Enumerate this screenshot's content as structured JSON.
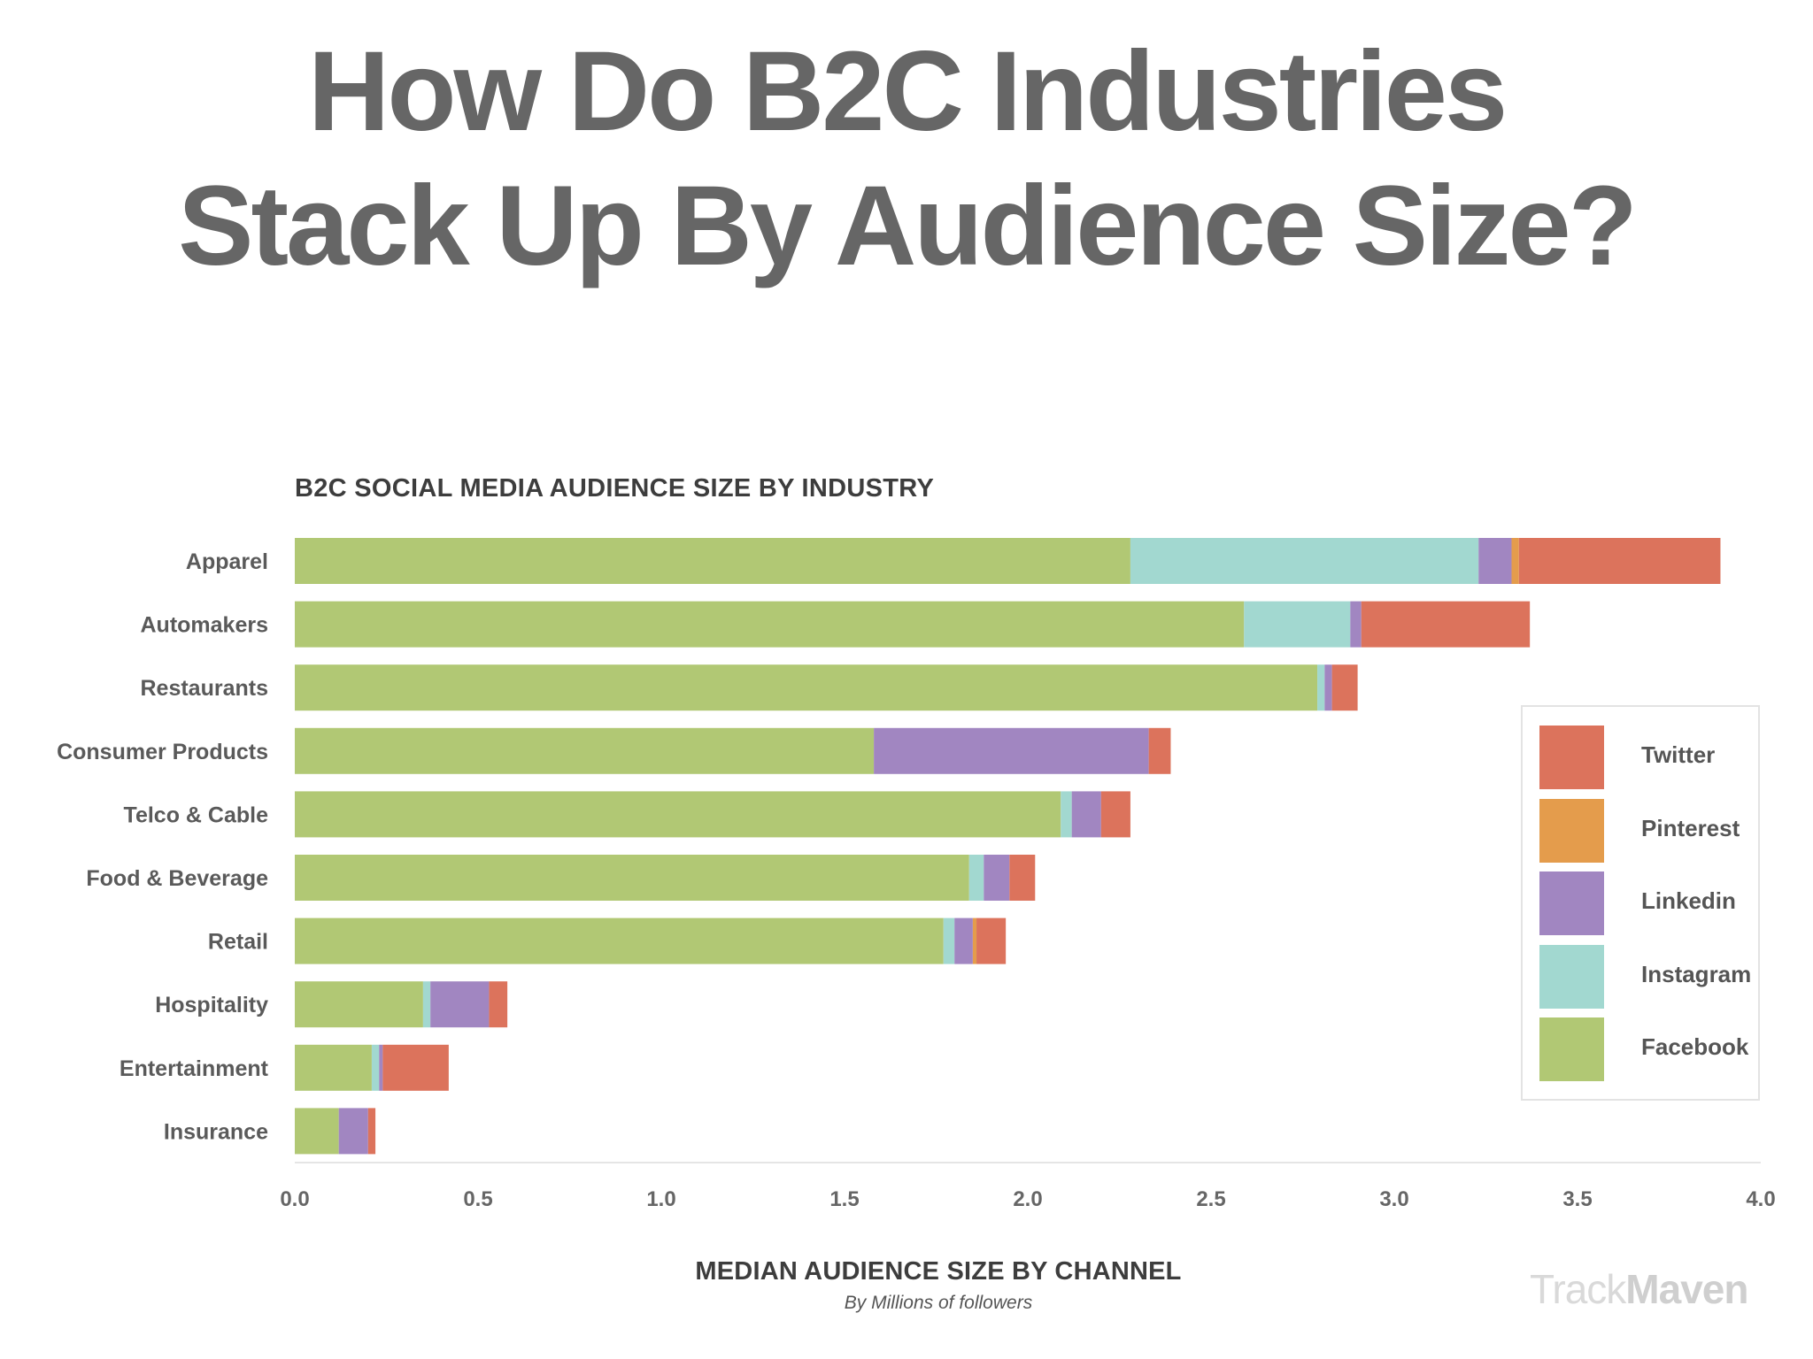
{
  "headline": {
    "line1": "How Do B2C Industries",
    "line2": "Stack Up By Audience Size?"
  },
  "colors": {
    "Facebook": "#b1c874",
    "Instagram": "#a2d8d0",
    "Linkedin": "#a186c1",
    "Pinterest": "#e49c4c",
    "Twitter": "#dc735c",
    "axis": "#e5e5e5",
    "text": "#555555"
  },
  "legend": [
    "Twitter",
    "Pinterest",
    "Linkedin",
    "Instagram",
    "Facebook"
  ],
  "watermark": {
    "part1": "Track",
    "part2": "Maven"
  },
  "chart_data": {
    "type": "bar",
    "orientation": "horizontal",
    "stacked": true,
    "title": "B2C SOCIAL MEDIA AUDIENCE SIZE BY INDUSTRY",
    "xlabel": "MEDIAN AUDIENCE SIZE BY CHANNEL",
    "xlabel_sub": "By Millions of followers",
    "ylabel": "",
    "xlim": [
      0,
      4
    ],
    "xticks": [
      "0.0",
      "0.5",
      "1.0",
      "1.5",
      "2.0",
      "2.5",
      "3.0",
      "3.5",
      "4.0"
    ],
    "legend_position": "right",
    "grid": false,
    "categories": [
      "Apparel",
      "Automakers",
      "Restaurants",
      "Consumer Products",
      "Telco & Cable",
      "Food & Beverage",
      "Retail",
      "Hospitality",
      "Entertainment",
      "Insurance"
    ],
    "series": [
      {
        "name": "Facebook",
        "values": [
          2.28,
          2.59,
          2.79,
          1.58,
          2.09,
          1.84,
          1.77,
          0.35,
          0.21,
          0.12
        ]
      },
      {
        "name": "Instagram",
        "values": [
          0.95,
          0.29,
          0.02,
          0.0,
          0.03,
          0.04,
          0.03,
          0.02,
          0.02,
          0.0
        ]
      },
      {
        "name": "Linkedin",
        "values": [
          0.09,
          0.03,
          0.02,
          0.75,
          0.08,
          0.07,
          0.05,
          0.16,
          0.01,
          0.08
        ]
      },
      {
        "name": "Pinterest",
        "values": [
          0.02,
          0.0,
          0.0,
          0.0,
          0.0,
          0.0,
          0.01,
          0.0,
          0.0,
          0.0
        ]
      },
      {
        "name": "Twitter",
        "values": [
          0.55,
          0.46,
          0.07,
          0.06,
          0.08,
          0.07,
          0.08,
          0.05,
          0.18,
          0.02
        ]
      }
    ]
  }
}
